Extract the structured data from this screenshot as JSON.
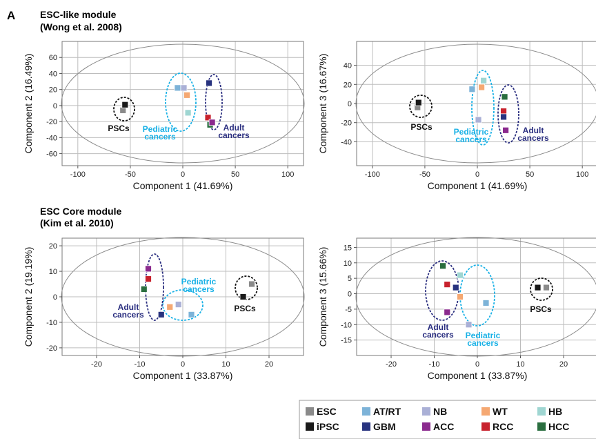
{
  "panel_letter": "A",
  "sections": [
    {
      "title": "ESC-like module",
      "subtitle": "(Wong et al. 2008)"
    },
    {
      "title": "ESC Core module",
      "subtitle": "(Kim et al. 2010)"
    }
  ],
  "colors": {
    "ESC": "#8a8a8a",
    "iPSC": "#1a1a1a",
    "AT/RT": "#7db3d8",
    "GBM": "#28337f",
    "NB": "#aab0d6",
    "ACC": "#8b2a8e",
    "WT": "#f5a872",
    "RCC": "#c8222d",
    "HB": "#9fd6d2",
    "HCC": "#2a6e3f",
    "group_psc": "#111111",
    "group_pediatric": "#19b1e6",
    "group_adult": "#2b2f80"
  },
  "legend": {
    "items": [
      {
        "label": "ESC",
        "key": "ESC"
      },
      {
        "label": "AT/RT",
        "key": "AT/RT"
      },
      {
        "label": "NB",
        "key": "NB"
      },
      {
        "label": "WT",
        "key": "WT"
      },
      {
        "label": "HB",
        "key": "HB"
      },
      {
        "label": "iPSC",
        "key": "iPSC"
      },
      {
        "label": "GBM",
        "key": "GBM"
      },
      {
        "label": "ACC",
        "key": "ACC"
      },
      {
        "label": "RCC",
        "key": "RCC"
      },
      {
        "label": "HCC",
        "key": "HCC"
      }
    ]
  },
  "chart_data": [
    {
      "type": "scatter",
      "xlabel": "Component 1 (41.69%)",
      "ylabel": "Component 2 (16.49%)",
      "xlim": [
        -115,
        115
      ],
      "ylim": [
        -75,
        80
      ],
      "xticks": [
        -100,
        -50,
        0,
        50,
        100
      ],
      "yticks": [
        -60,
        -40,
        -20,
        0,
        20,
        40,
        60
      ],
      "grid": true,
      "points": [
        {
          "key": "ESC",
          "x": -57,
          "y": -6
        },
        {
          "key": "iPSC",
          "x": -55,
          "y": 1
        },
        {
          "key": "AT/RT",
          "x": -5,
          "y": 22
        },
        {
          "key": "NB",
          "x": 1,
          "y": 22
        },
        {
          "key": "WT",
          "x": 4,
          "y": 13
        },
        {
          "key": "HB",
          "x": 5,
          "y": -9
        },
        {
          "key": "GBM",
          "x": 25,
          "y": 28
        },
        {
          "key": "RCC",
          "x": 24,
          "y": -15
        },
        {
          "key": "HCC",
          "x": 26,
          "y": -24
        },
        {
          "key": "ACC",
          "x": 28,
          "y": -21
        }
      ],
      "groups": [
        {
          "name": "PSCs",
          "type": "psc"
        },
        {
          "name": "Pediatric cancers",
          "type": "pediatric"
        },
        {
          "name": "Adult cancers",
          "type": "adult"
        }
      ]
    },
    {
      "type": "scatter",
      "xlabel": "Component 1 (41.69%)",
      "ylabel": "Component 3 (16.67%)",
      "xlim": [
        -115,
        115
      ],
      "ylim": [
        -65,
        65
      ],
      "xticks": [
        -100,
        -50,
        0,
        50,
        100
      ],
      "yticks": [
        -40,
        -20,
        0,
        20,
        40
      ],
      "grid": true,
      "points": [
        {
          "key": "ESC",
          "x": -57,
          "y": -4
        },
        {
          "key": "iPSC",
          "x": -56,
          "y": 1
        },
        {
          "key": "AT/RT",
          "x": -5,
          "y": 15
        },
        {
          "key": "WT",
          "x": 4,
          "y": 17
        },
        {
          "key": "HB",
          "x": 6,
          "y": 24
        },
        {
          "key": "NB",
          "x": 1,
          "y": -17
        },
        {
          "key": "HCC",
          "x": 26,
          "y": 7
        },
        {
          "key": "RCC",
          "x": 25,
          "y": -8
        },
        {
          "key": "GBM",
          "x": 25,
          "y": -14
        },
        {
          "key": "ACC",
          "x": 27,
          "y": -28
        }
      ],
      "groups": [
        {
          "name": "PSCs",
          "type": "psc"
        },
        {
          "name": "Pediatric cancers",
          "type": "pediatric"
        },
        {
          "name": "Adult cancers",
          "type": "adult"
        }
      ]
    },
    {
      "type": "scatter",
      "xlabel": "Component 1 (33.87%)",
      "ylabel": "Component 2 (19.19%)",
      "xlim": [
        -28,
        28
      ],
      "ylim": [
        -23,
        23
      ],
      "xticks": [
        -20,
        -10,
        0,
        10,
        20
      ],
      "yticks": [
        -20,
        -10,
        0,
        10,
        20
      ],
      "grid": true,
      "points": [
        {
          "key": "ACC",
          "x": -8,
          "y": 11
        },
        {
          "key": "RCC",
          "x": -8,
          "y": 7
        },
        {
          "key": "HCC",
          "x": -9,
          "y": 3
        },
        {
          "key": "GBM",
          "x": -5,
          "y": -7
        },
        {
          "key": "WT",
          "x": -3,
          "y": -4
        },
        {
          "key": "NB",
          "x": -1,
          "y": -3
        },
        {
          "key": "AT/RT",
          "x": 2,
          "y": -7
        },
        {
          "key": "iPSC",
          "x": 14,
          "y": 0
        },
        {
          "key": "ESC",
          "x": 16,
          "y": 5
        }
      ],
      "groups": [
        {
          "name": "PSCs",
          "type": "psc"
        },
        {
          "name": "Pediatric cancers",
          "type": "pediatric"
        },
        {
          "name": "Adult cancers",
          "type": "adult"
        }
      ]
    },
    {
      "type": "scatter",
      "xlabel": "Component 1 (33.87%)",
      "ylabel": "Component 3 (15.66%)",
      "xlim": [
        -28,
        28
      ],
      "ylim": [
        -20,
        18
      ],
      "xticks": [
        -20,
        -10,
        0,
        10,
        20
      ],
      "yticks": [
        -15,
        -10,
        -5,
        0,
        5,
        10,
        15
      ],
      "grid": true,
      "points": [
        {
          "key": "HCC",
          "x": -8,
          "y": 9
        },
        {
          "key": "RCC",
          "x": -7,
          "y": 3
        },
        {
          "key": "GBM",
          "x": -5,
          "y": 2
        },
        {
          "key": "ACC",
          "x": -7,
          "y": -6
        },
        {
          "key": "HB",
          "x": -4,
          "y": 6
        },
        {
          "key": "WT",
          "x": -4,
          "y": -1
        },
        {
          "key": "AT/RT",
          "x": 2,
          "y": -3
        },
        {
          "key": "NB",
          "x": -2,
          "y": -10
        },
        {
          "key": "iPSC",
          "x": 14,
          "y": 2
        },
        {
          "key": "ESC",
          "x": 16,
          "y": 2
        }
      ],
      "groups": [
        {
          "name": "PSCs",
          "type": "psc"
        },
        {
          "name": "Pediatric cancers",
          "type": "pediatric"
        },
        {
          "name": "Adult cancers",
          "type": "adult"
        }
      ]
    }
  ]
}
